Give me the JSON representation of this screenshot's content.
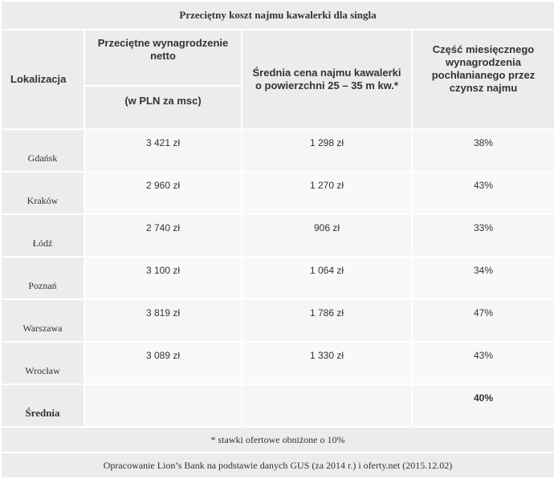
{
  "table": {
    "caption": "Przeciętny koszt najmu kawalerki dla singla",
    "headers": {
      "location": "Lokalizacja",
      "salary": "Przeciętne wynagrodzenie netto",
      "salary_unit": "(w PLN za msc)",
      "rent": "Średnia cena najmu kawalerki o powierzchni 25 – 35 m kw.*",
      "share": "Część miesięcznego wynagrodzenia pochłanianego przez czynsz najmu"
    },
    "rows": [
      {
        "city": "Gdańsk",
        "salary": "3 421 zł",
        "rent": "1 298 zł",
        "share": "38%"
      },
      {
        "city": "Kraków",
        "salary": "2 960 zł",
        "rent": "1 270 zł",
        "share": "43%"
      },
      {
        "city": "Łódź",
        "salary": "2 740 zł",
        "rent": "906 zł",
        "share": "33%"
      },
      {
        "city": "Poznań",
        "salary": "3 100 zł",
        "rent": "1 064 zł",
        "share": "34%"
      },
      {
        "city": "Warszawa",
        "salary": "3 819 zł",
        "rent": "1 786 zł",
        "share": "47%"
      },
      {
        "city": "Wrocław",
        "salary": "3 089 zł",
        "rent": "1 330 zł",
        "share": "43%"
      }
    ],
    "average": {
      "label": "Średnia",
      "share": "40%"
    },
    "footnote": "* stawki ofertowe obniżone o 10%",
    "source": "Opracowanie Lion’s Bank na podstawie danych GUS (za 2014 r.) i oferty.net (2015.12.02)"
  }
}
